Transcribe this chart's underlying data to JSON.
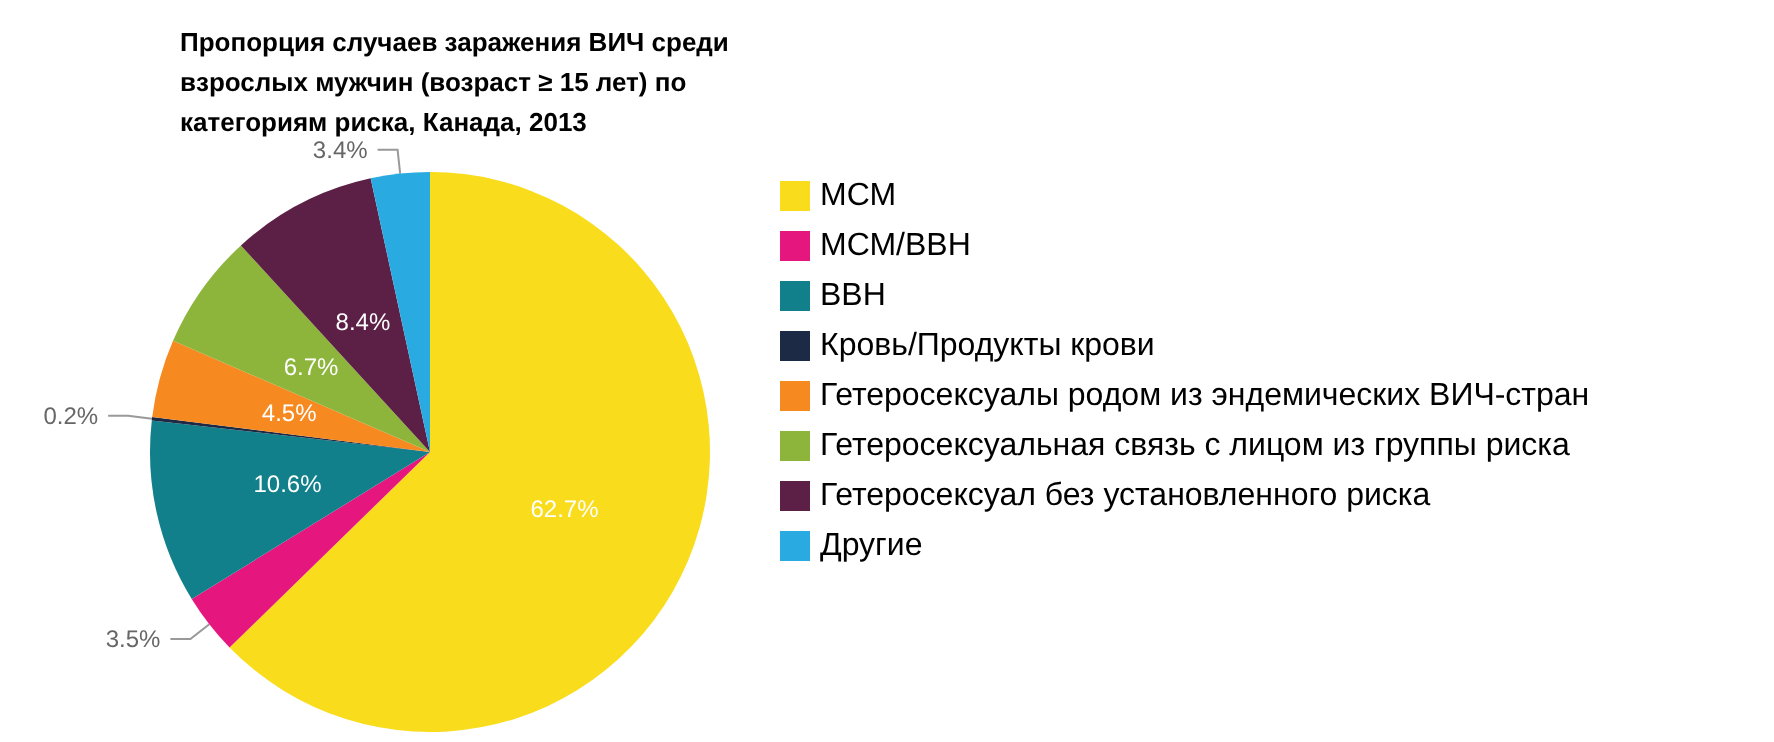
{
  "chart_data": {
    "type": "pie",
    "title": "Пропорция случаев заражения ВИЧ среди взрослых мужчин (возраст ≥ 15 лет) по категориям риска, Канада, 2013",
    "categories": [
      "МСМ",
      "МСМ/ВВН",
      "ВВН",
      "Кровь/Продукты крови",
      "Гетеросексуалы родом из эндемических ВИЧ-стран",
      "Гетеросексуальная связь с лицом из группы риска",
      "Гетеросексуал без установленного риска",
      "Другие"
    ],
    "values": [
      62.7,
      3.5,
      10.6,
      0.2,
      4.5,
      6.7,
      8.4,
      3.4
    ],
    "colors": [
      "#f9dc1c",
      "#e6167f",
      "#12808b",
      "#1d2a45",
      "#f68a21",
      "#8db53c",
      "#5c1f45",
      "#29abe2"
    ],
    "value_labels": [
      "62.7%",
      "3.5%",
      "10.6%",
      "0.2%",
      "4.5%",
      "6.7%",
      "8.4%",
      "3.4%"
    ],
    "legend": "right"
  }
}
